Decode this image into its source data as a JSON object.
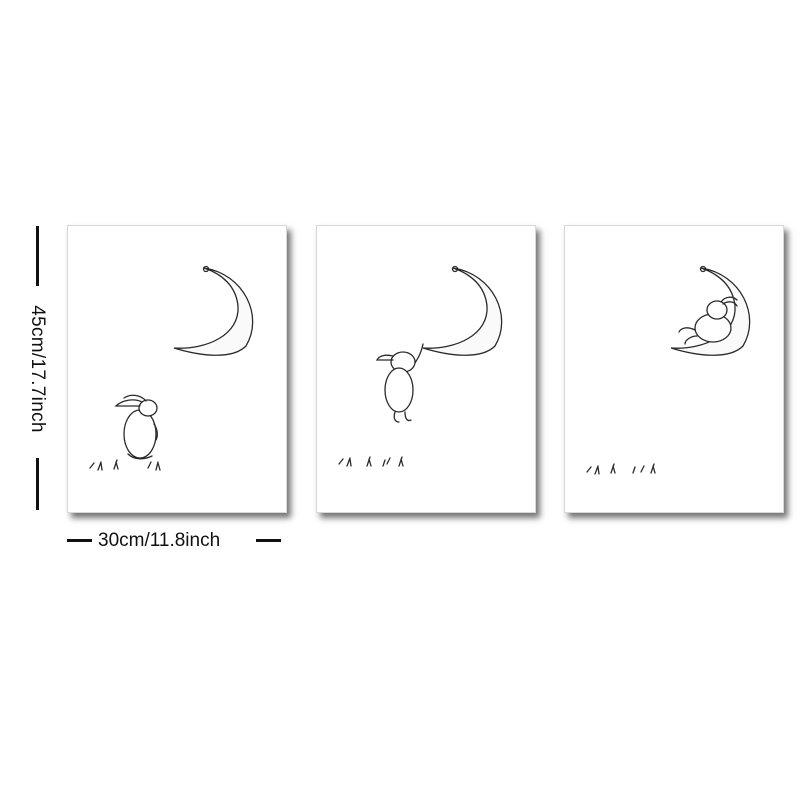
{
  "dimensions": {
    "height_label": "45cm/17.7inch",
    "width_label": "30cm/11.8inch"
  },
  "prints": [
    {
      "name": "print-bunny-gazing-at-moon",
      "scene": "bunny-looking-up"
    },
    {
      "name": "print-bunny-hanging-from-moon",
      "scene": "bunny-hanging"
    },
    {
      "name": "print-bunny-resting-on-moon",
      "scene": "bunny-on-moon"
    }
  ],
  "colors": {
    "ink": "#2a2a2a",
    "frame_border": "#d8d8d8",
    "background": "#ffffff"
  }
}
